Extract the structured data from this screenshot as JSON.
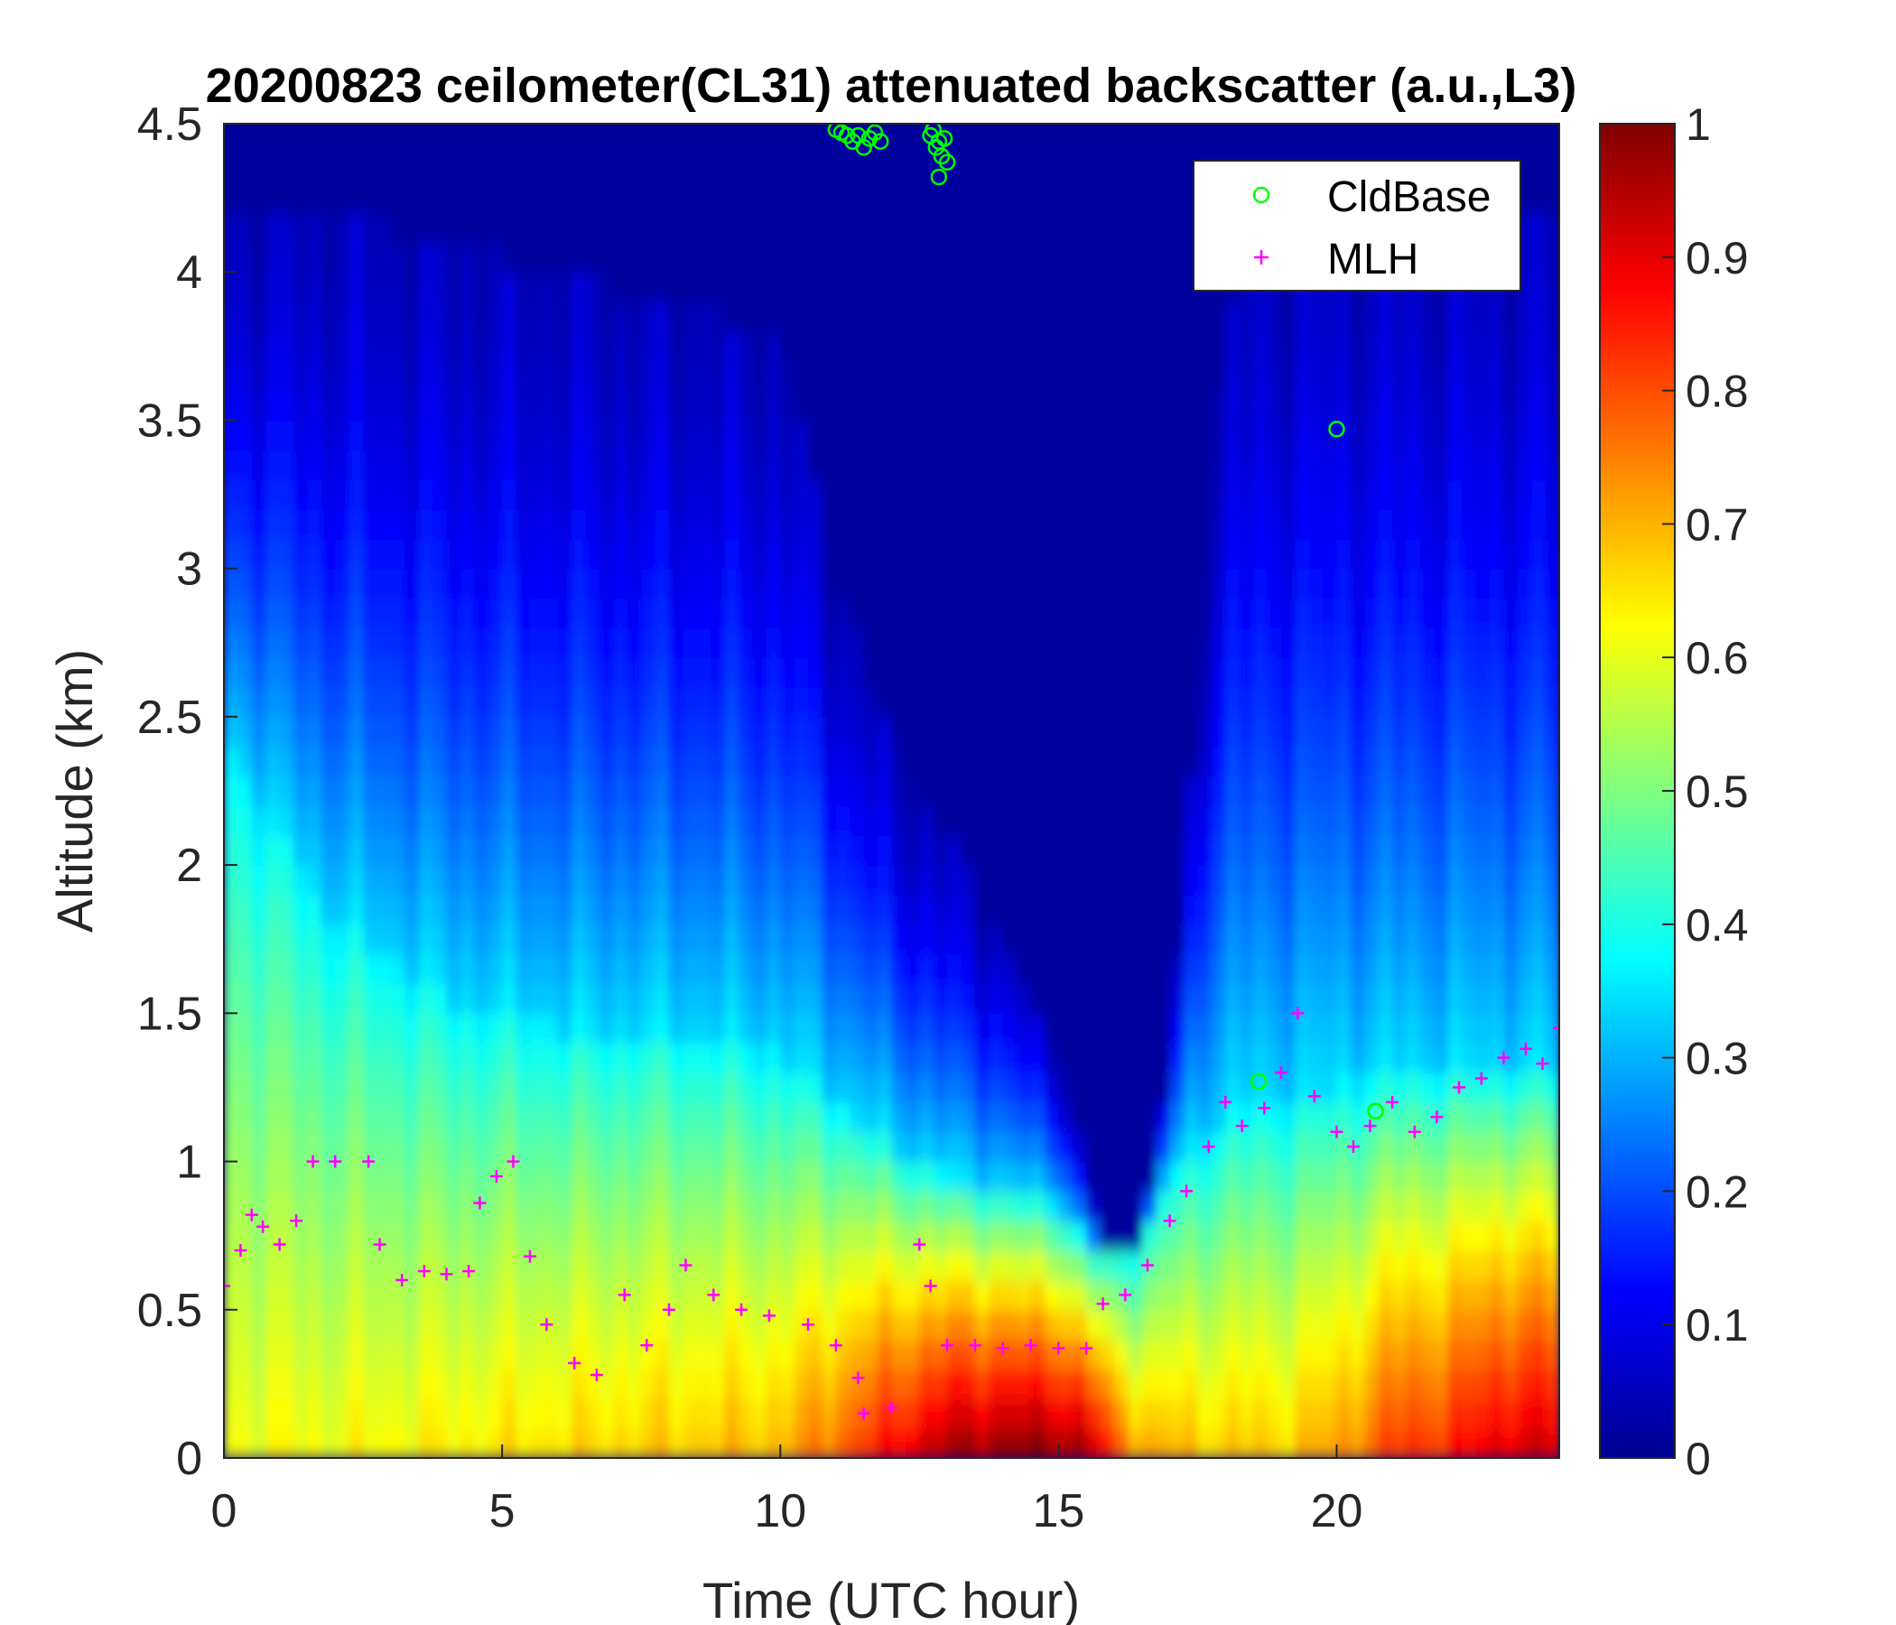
{
  "chart_data": {
    "type": "heatmap",
    "title": "20200823 ceilometer(CL31) attenuated backscatter (a.u.,L3)",
    "xlabel": "Time (UTC hour)",
    "ylabel": "Altitude (km)",
    "xlim": [
      0,
      24
    ],
    "ylim": [
      0,
      4.5
    ],
    "xticks": [
      0,
      5,
      10,
      15,
      20
    ],
    "xtick_labels": [
      "0",
      "5",
      "10",
      "15",
      "20"
    ],
    "yticks": [
      0,
      0.5,
      1,
      1.5,
      2,
      2.5,
      3,
      3.5,
      4,
      4.5
    ],
    "ytick_labels": [
      "0",
      "0.5",
      "1",
      "1.5",
      "2",
      "2.5",
      "3",
      "3.5",
      "4",
      "4.5"
    ],
    "colormap": "jet",
    "clim": [
      0,
      1
    ],
    "colorbar_ticks": [
      0,
      0.1,
      0.2,
      0.3,
      0.4,
      0.5,
      0.6,
      0.7,
      0.8,
      0.9,
      1
    ],
    "colorbar_tick_labels": [
      "0",
      "0.1",
      "0.2",
      "0.3",
      "0.4",
      "0.5",
      "0.6",
      "0.7",
      "0.8",
      "0.9",
      "1"
    ],
    "legend_position": "top-right",
    "grid": false,
    "field_profile": {
      "time": [
        0,
        2,
        4,
        6,
        8,
        10,
        11,
        12,
        13,
        14,
        15,
        15.5,
        16,
        16.5,
        17,
        18,
        19,
        20,
        21,
        22,
        23,
        24
      ],
      "blue_layer_top_km": [
        4.2,
        4.2,
        4.1,
        4.0,
        3.9,
        3.8,
        3.0,
        2.4,
        2.1,
        1.8,
        1.4,
        0.95,
        0.68,
        0.78,
        1.4,
        3.9,
        4.2,
        4.2,
        4.2,
        4.2,
        4.2,
        4.2
      ],
      "cyan_layer_top_km": [
        2.4,
        1.8,
        1.55,
        1.45,
        1.45,
        1.35,
        1.2,
        1.05,
        0.95,
        0.9,
        0.85,
        0.72,
        0.68,
        0.75,
        0.95,
        1.15,
        1.2,
        1.25,
        1.3,
        1.3,
        1.3,
        1.3
      ],
      "surface_peak_value": [
        0.62,
        0.62,
        0.64,
        0.66,
        0.68,
        0.7,
        0.78,
        0.88,
        0.97,
        1.0,
        1.0,
        0.98,
        0.82,
        0.72,
        0.7,
        0.68,
        0.68,
        0.72,
        0.82,
        0.85,
        0.92,
        0.92
      ]
    },
    "series": [
      {
        "name": "CldBase",
        "marker": "circle",
        "color": "#00ff00",
        "x": [
          11.0,
          11.1,
          11.2,
          11.3,
          11.4,
          11.5,
          11.6,
          11.7,
          11.8,
          12.7,
          12.75,
          12.8,
          12.85,
          12.9,
          12.95,
          13.0,
          12.85,
          18.6,
          20.0,
          20.7
        ],
        "y": [
          4.48,
          4.47,
          4.46,
          4.44,
          4.46,
          4.42,
          4.45,
          4.47,
          4.44,
          4.46,
          4.48,
          4.42,
          4.44,
          4.39,
          4.45,
          4.37,
          4.32,
          1.27,
          3.47,
          1.17
        ]
      },
      {
        "name": "MLH",
        "marker": "plus",
        "color": "#ff00ff",
        "x": [
          0,
          0.3,
          0.5,
          0.7,
          1.0,
          1.3,
          1.6,
          2.0,
          2.6,
          2.8,
          3.2,
          3.6,
          4.0,
          4.4,
          4.6,
          4.9,
          5.2,
          5.5,
          5.8,
          6.3,
          6.7,
          7.2,
          7.6,
          8.0,
          8.3,
          8.8,
          9.3,
          9.8,
          10.5,
          11.0,
          11.4,
          11.5,
          12.0,
          12.5,
          12.7,
          13.0,
          13.5,
          14.0,
          14.5,
          15.0,
          15.5,
          15.8,
          16.2,
          16.6,
          17.0,
          17.3,
          17.7,
          18.0,
          18.3,
          18.7,
          19.0,
          19.3,
          19.6,
          20.0,
          20.3,
          20.6,
          21.0,
          21.4,
          21.8,
          22.2,
          22.6,
          23.0,
          23.4,
          23.7,
          24.0
        ],
        "y": [
          0.58,
          0.7,
          0.82,
          0.78,
          0.72,
          0.8,
          1.0,
          1.0,
          1.0,
          0.72,
          0.6,
          0.63,
          0.62,
          0.63,
          0.86,
          0.95,
          1.0,
          0.68,
          0.45,
          0.32,
          0.28,
          0.55,
          0.38,
          0.5,
          0.65,
          0.55,
          0.5,
          0.48,
          0.45,
          0.38,
          0.27,
          0.15,
          0.17,
          0.72,
          0.58,
          0.38,
          0.38,
          0.37,
          0.38,
          0.37,
          0.37,
          0.52,
          0.55,
          0.65,
          0.8,
          0.9,
          1.05,
          1.2,
          1.12,
          1.18,
          1.3,
          1.5,
          1.22,
          1.1,
          1.05,
          1.12,
          1.2,
          1.1,
          1.15,
          1.25,
          1.28,
          1.35,
          1.38,
          1.33,
          1.45
        ]
      }
    ]
  }
}
